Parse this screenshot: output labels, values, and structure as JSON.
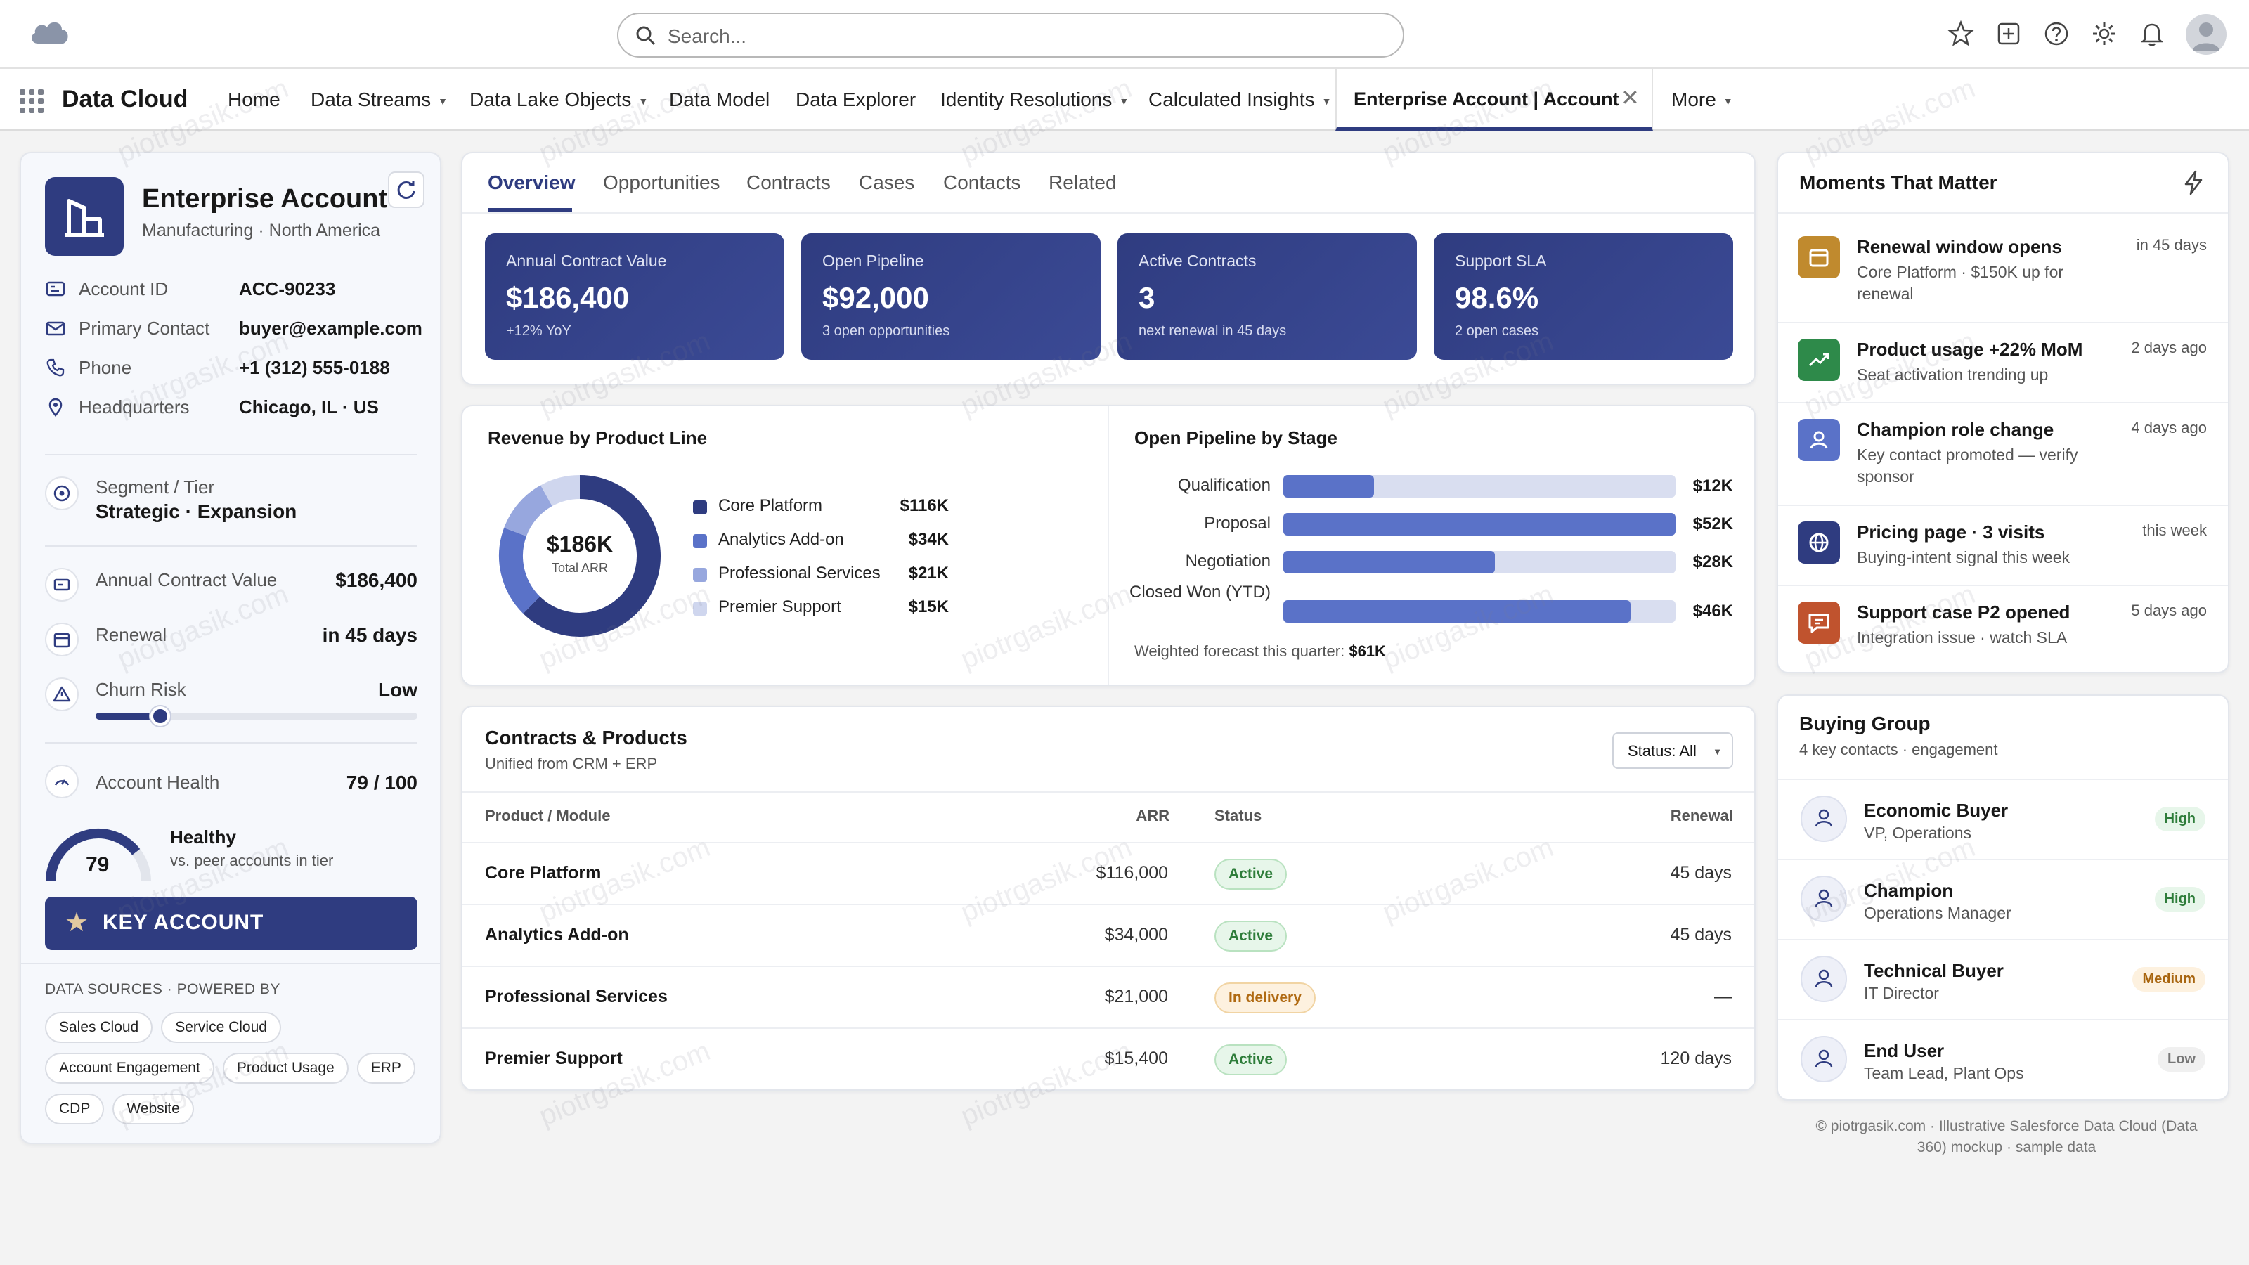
{
  "header": {
    "search_placeholder": "Search...",
    "icons": [
      "cloud-logo-icon",
      "star-icon",
      "add-icon",
      "help-icon",
      "gear-icon",
      "bell-icon",
      "avatar-icon"
    ]
  },
  "nav": {
    "app_name": "Data Cloud",
    "items": [
      "Home",
      "Data Streams",
      "Data Lake Objects",
      "Data Model",
      "Data Explorer",
      "Identity Resolutions",
      "Calculated Insights"
    ],
    "active_tab": "Enterprise Account | Account",
    "more": "More"
  },
  "account": {
    "name": "Enterprise Account",
    "subtitle": "Manufacturing · North America",
    "fields": [
      {
        "label": "Account ID",
        "value": "ACC-90233"
      },
      {
        "label": "Primary Contact",
        "value": "buyer@example.com"
      },
      {
        "label": "Phone",
        "value": "+1 (312) 555-0188"
      },
      {
        "label": "Headquarters",
        "value": "Chicago, IL · US"
      }
    ],
    "segment_label": "Segment / Tier",
    "segment_value": "Strategic · Expansion",
    "acv_label": "Annual Contract Value",
    "acv_value": "$186,400",
    "renewal_label": "Renewal",
    "renewal_value": "in 45 days",
    "churn_label": "Churn Risk",
    "churn_value": "Low",
    "churn_level": 0.2,
    "health_label": "Account Health",
    "health_value": "79 / 100",
    "health_score": 79,
    "health_gauge_value": "79",
    "health_status": "Healthy",
    "health_note": "vs. peer accounts in tier",
    "key_account_label": "KEY ACCOUNT",
    "sources_title": "DATA SOURCES · POWERED BY",
    "sources": [
      "Sales Cloud",
      "Service Cloud",
      "Account Engagement",
      "Product Usage",
      "ERP",
      "CDP",
      "Website"
    ]
  },
  "tabs": [
    "Overview",
    "Opportunities",
    "Contracts",
    "Cases",
    "Contacts",
    "Related"
  ],
  "kpis": [
    {
      "title": "Annual Contract Value",
      "value": "$186,400",
      "sub": "+12% YoY"
    },
    {
      "title": "Open Pipeline",
      "value": "$92,000",
      "sub": "3 open opportunities"
    },
    {
      "title": "Active Contracts",
      "value": "3",
      "sub": "next renewal in 45 days"
    },
    {
      "title": "Support SLA",
      "value": "98.6%",
      "sub": "2 open cases"
    }
  ],
  "chart_data": [
    {
      "type": "pie",
      "title": "Revenue by Product Line",
      "center_value": "$186K",
      "center_label": "Total ARR",
      "categories": [
        "Core Platform",
        "Analytics Add-on",
        "Professional Services",
        "Premier Support"
      ],
      "values": [
        116,
        34,
        21,
        15
      ],
      "value_labels": [
        "$116K",
        "$34K",
        "$21K",
        "$15K"
      ],
      "colors": [
        "#2f3c80",
        "#5a72c8",
        "#97a7de",
        "#cfd6ee"
      ]
    },
    {
      "type": "bar",
      "title": "Open Pipeline by Stage",
      "categories": [
        "Qualification",
        "Proposal",
        "Negotiation",
        "Closed Won (YTD)"
      ],
      "values": [
        12,
        52,
        28,
        46
      ],
      "value_labels": [
        "$12K",
        "$52K",
        "$28K",
        "$46K"
      ],
      "xlim": [
        0,
        52
      ],
      "footnote_label": "Weighted forecast this quarter:",
      "footnote_value": "$61K"
    }
  ],
  "contracts": {
    "title": "Contracts & Products",
    "subtitle": "Unified from CRM + ERP",
    "filter": "Status: All",
    "columns": [
      "Product / Module",
      "ARR",
      "Status",
      "Renewal"
    ],
    "rows": [
      {
        "product": "Core Platform",
        "arr": "$116,000",
        "status": "Active",
        "renewal": "45 days"
      },
      {
        "product": "Analytics Add-on",
        "arr": "$34,000",
        "status": "Active",
        "renewal": "45 days"
      },
      {
        "product": "Professional Services",
        "arr": "$21,000",
        "status": "In delivery",
        "renewal": "—"
      },
      {
        "product": "Premier Support",
        "arr": "$15,400",
        "status": "Active",
        "renewal": "120 days"
      }
    ]
  },
  "moments": {
    "title": "Moments That Matter",
    "items": [
      {
        "title": "Renewal window opens",
        "desc": "Core Platform · $150K up for renewal",
        "time": "in 45 days",
        "color": "#c08a2e",
        "icon": "calendar-icon"
      },
      {
        "title": "Product usage +22% MoM",
        "desc": "Seat activation trending up",
        "time": "2 days ago",
        "color": "#2e8a4a",
        "icon": "trend-up-icon"
      },
      {
        "title": "Champion role change",
        "desc": "Key contact promoted — verify sponsor",
        "time": "4 days ago",
        "color": "#5a72c8",
        "icon": "person-icon"
      },
      {
        "title": "Pricing page · 3 visits",
        "desc": "Buying-intent signal this week",
        "time": "this week",
        "color": "#2f3c80",
        "icon": "globe-icon"
      },
      {
        "title": "Support case P2 opened",
        "desc": "Integration issue · watch SLA",
        "time": "5 days ago",
        "color": "#c0532e",
        "icon": "chat-icon"
      }
    ]
  },
  "buying_group": {
    "title": "Buying Group",
    "subtitle": "4 key contacts · engagement",
    "members": [
      {
        "role": "Economic Buyer",
        "title": "VP, Operations",
        "level": "High"
      },
      {
        "role": "Champion",
        "title": "Operations Manager",
        "level": "High"
      },
      {
        "role": "Technical Buyer",
        "title": "IT Director",
        "level": "Medium"
      },
      {
        "role": "End User",
        "title": "Team Lead, Plant Ops",
        "level": "Low"
      }
    ]
  },
  "footer": "© piotrgasik.com · Illustrative Salesforce Data Cloud (Data 360) mockup · sample data",
  "watermark": "piotrgasik.com"
}
